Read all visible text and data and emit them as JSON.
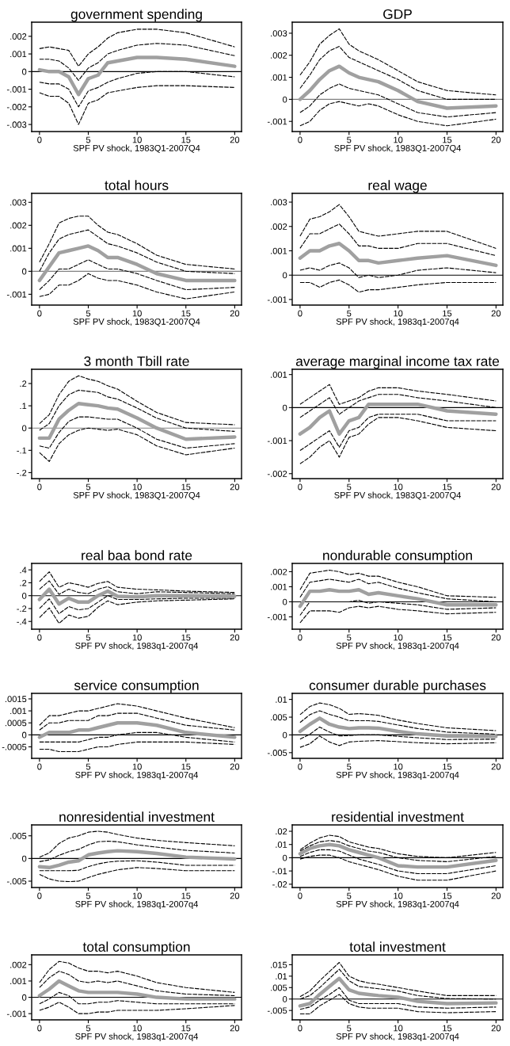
{
  "chart_data": [
    {
      "type": "line",
      "title": "government spending",
      "xlabel": "SPF PV shock, 1983Q1-2007Q4",
      "x": [
        0,
        1,
        2,
        3,
        4,
        5,
        6,
        7,
        8,
        10,
        12,
        15,
        20
      ],
      "xlim": [
        -0.8,
        20.7
      ],
      "xticks": [
        0,
        5,
        10,
        15,
        20
      ],
      "ylim": [
        -0.0034,
        0.0028
      ],
      "yticks": [
        {
          "value": -0.003,
          "label": "-.003"
        },
        {
          "value": -0.002,
          "label": "-.002"
        },
        {
          "value": -0.001,
          "label": "-.001"
        },
        0,
        {
          "value": 0.001,
          "label": ".001"
        },
        {
          "value": 0.002,
          "label": ".002"
        }
      ],
      "ref_lines": [
        {
          "axis": "y",
          "value": 0,
          "color": "#000000"
        }
      ],
      "series": [
        {
          "color": "#000000",
          "line_style": "dashed",
          "values": [
            0.0013,
            0.0014,
            0.0013,
            0.0012,
            0.0003,
            0.001,
            0.0014,
            0.0019,
            0.0022,
            0.0024,
            0.0024,
            0.0022,
            0.0014
          ]
        },
        {
          "color": "#000000",
          "line_style": "dashed",
          "values": [
            0.0007,
            0.0007,
            0.0006,
            0.0002,
            -0.0005,
            0.0002,
            0.0005,
            0.001,
            0.0012,
            0.0015,
            0.0016,
            0.0015,
            0.0009
          ]
        },
        {
          "color": "#000000",
          "line_style": "dashed",
          "values": [
            -0.0006,
            -0.0007,
            -0.0007,
            -0.001,
            -0.002,
            -0.0011,
            -0.0009,
            -0.0006,
            -0.0004,
            -0.0001,
            0,
            0,
            -0.0003
          ]
        },
        {
          "color": "#000000",
          "line_style": "dashed",
          "values": [
            -0.0012,
            -0.0014,
            -0.0014,
            -0.0018,
            -0.003,
            -0.0018,
            -0.0016,
            -0.0012,
            -0.0011,
            -0.0009,
            -0.0008,
            -0.0008,
            -0.0009
          ]
        },
        {
          "color": "#a0a0a0",
          "line_style": "solid",
          "values": [
            0.0001,
            0,
            0,
            -0.0003,
            -0.0013,
            -0.0004,
            -0.0002,
            0.0005,
            0.0006,
            0.0008,
            0.0008,
            0.0007,
            0.0003
          ]
        }
      ]
    },
    {
      "type": "line",
      "title": "GDP",
      "xlabel": "SPF PV shock, 1983Q1-2007Q4",
      "x": [
        0,
        1,
        2,
        3,
        4,
        5,
        6,
        7,
        8,
        10,
        12,
        15,
        20
      ],
      "xlim": [
        -0.8,
        20.7
      ],
      "xticks": [
        0,
        5,
        10,
        15,
        20
      ],
      "ylim": [
        -0.00146,
        0.0035
      ],
      "yticks": [
        {
          "value": -0.001,
          "label": "-.001"
        },
        0,
        {
          "value": 0.001,
          "label": ".001"
        },
        {
          "value": 0.002,
          "label": ".002"
        },
        {
          "value": 0.003,
          "label": ".003"
        }
      ],
      "ref_lines": [
        {
          "axis": "y",
          "value": 0,
          "color": "#808080"
        }
      ],
      "series": [
        {
          "color": "#000000",
          "line_style": "dashed",
          "values": [
            0.0011,
            0.0017,
            0.0025,
            0.0029,
            0.0032,
            0.0025,
            0.0022,
            0.002,
            0.0018,
            0.0013,
            0.0008,
            0.0004,
            0.0002
          ]
        },
        {
          "color": "#000000",
          "line_style": "dashed",
          "values": [
            0.0005,
            0.0011,
            0.0018,
            0.0022,
            0.0024,
            0.0019,
            0.0017,
            0.0015,
            0.0013,
            0.0009,
            0.0004,
            0,
            0
          ]
        },
        {
          "color": "#000000",
          "line_style": "dashed",
          "values": [
            -0.0006,
            -0.0003,
            0.0002,
            0.0005,
            0.0007,
            0.0005,
            0.0004,
            0.0003,
            0.0002,
            -0.0002,
            -0.0006,
            -0.0008,
            -0.0006
          ]
        },
        {
          "color": "#000000",
          "line_style": "dashed",
          "values": [
            -0.0012,
            -0.001,
            -0.0005,
            -0.0002,
            -0.0001,
            -0.0002,
            -0.0003,
            -0.0002,
            -0.0003,
            -0.0007,
            -0.001,
            -0.0012,
            -0.0009
          ]
        },
        {
          "color": "#a0a0a0",
          "line_style": "solid",
          "values": [
            0,
            0.0004,
            0.0009,
            0.0013,
            0.0015,
            0.0012,
            0.001,
            0.0009,
            0.0008,
            0.0004,
            -0.0001,
            -0.0004,
            -0.0003
          ]
        }
      ]
    },
    {
      "type": "line",
      "title": "total hours",
      "xlabel": "SPF PV shock, 1983Q1-2007Q4",
      "x": [
        0,
        1,
        2,
        3,
        4,
        5,
        6,
        7,
        8,
        10,
        12,
        15,
        20
      ],
      "xlim": [
        -0.8,
        20.7
      ],
      "xticks": [
        0,
        5,
        10,
        15,
        20
      ],
      "ylim": [
        -0.00147,
        0.00339
      ],
      "yticks": [
        {
          "value": -0.001,
          "label": "-.001"
        },
        0,
        {
          "value": 0.001,
          "label": ".001"
        },
        {
          "value": 0.002,
          "label": ".002"
        },
        {
          "value": 0.003,
          "label": ".003"
        }
      ],
      "ref_lines": [
        {
          "axis": "y",
          "value": 0,
          "color": "#808080"
        }
      ],
      "series": [
        {
          "color": "#000000",
          "line_style": "dashed",
          "values": [
            0.0004,
            0.0012,
            0.0021,
            0.0023,
            0.0024,
            0.0024,
            0.002,
            0.0017,
            0.0016,
            0.0012,
            0.0007,
            0.0003,
            0.0001
          ]
        },
        {
          "color": "#000000",
          "line_style": "dashed",
          "values": [
            0,
            0.0008,
            0.0014,
            0.0016,
            0.0017,
            0.0018,
            0.0015,
            0.0012,
            0.0011,
            0.0008,
            0.0004,
            0,
            -0.0001
          ]
        },
        {
          "color": "#000000",
          "line_style": "dashed",
          "values": [
            -0.0008,
            -0.0004,
            0.0001,
            0.0001,
            0.0003,
            0.0005,
            0.0003,
            0.0001,
            0.0001,
            -0.0001,
            -0.0004,
            -0.0008,
            -0.0007
          ]
        },
        {
          "color": "#000000",
          "line_style": "dashed",
          "values": [
            -0.0011,
            -0.001,
            -0.0006,
            -0.0006,
            -0.0004,
            -0.0001,
            -0.0003,
            -0.0004,
            -0.0004,
            -0.0006,
            -0.0009,
            -0.0012,
            -0.0009
          ]
        },
        {
          "color": "#a0a0a0",
          "line_style": "solid",
          "values": [
            -0.0004,
            0.0002,
            0.0008,
            0.0009,
            0.001,
            0.0011,
            0.0009,
            0.0006,
            0.0006,
            0.0003,
            -0.0001,
            -0.0004,
            -0.0004
          ]
        }
      ]
    },
    {
      "type": "line",
      "title": "real wage",
      "xlabel": "SPF PV shock, 1983q1-2007q4",
      "x": [
        0,
        1,
        2,
        3,
        4,
        5,
        6,
        7,
        8,
        10,
        12,
        15,
        20
      ],
      "xlim": [
        -0.8,
        20.7
      ],
      "xticks": [
        0,
        5,
        10,
        15,
        20
      ],
      "ylim": [
        -0.00123,
        0.00336
      ],
      "yticks": [
        {
          "value": -0.001,
          "label": "-.001"
        },
        0,
        {
          "value": 0.001,
          "label": ".001"
        },
        {
          "value": 0.002,
          "label": ".002"
        },
        {
          "value": 0.003,
          "label": ".003"
        }
      ],
      "ref_lines": [
        {
          "axis": "y",
          "value": 0,
          "color": "#000000"
        }
      ],
      "series": [
        {
          "color": "#000000",
          "line_style": "dashed",
          "values": [
            0.0016,
            0.0023,
            0.0024,
            0.0026,
            0.0029,
            0.0024,
            0.0018,
            0.0017,
            0.0016,
            0.0017,
            0.0018,
            0.0018,
            0.0011
          ]
        },
        {
          "color": "#000000",
          "line_style": "dashed",
          "values": [
            0.0011,
            0.0017,
            0.0017,
            0.0019,
            0.0021,
            0.0017,
            0.0012,
            0.0012,
            0.0011,
            0.0011,
            0.0013,
            0.0013,
            0.0008
          ]
        },
        {
          "color": "#000000",
          "line_style": "dashed",
          "values": [
            0.0002,
            0.0003,
            0.0002,
            0.0004,
            0.0005,
            0.0003,
            -0.0001,
            0,
            -0.0001,
            0,
            0.0002,
            0.0003,
            0.0001
          ]
        },
        {
          "color": "#000000",
          "line_style": "dashed",
          "values": [
            -0.0003,
            -0.0003,
            -0.0005,
            -0.0003,
            -0.0002,
            -0.0004,
            -0.0007,
            -0.0006,
            -0.0006,
            -0.0005,
            -0.0004,
            -0.0003,
            -0.0003
          ]
        },
        {
          "color": "#a0a0a0",
          "line_style": "solid",
          "values": [
            0.0007,
            0.001,
            0.001,
            0.0012,
            0.0013,
            0.001,
            0.0006,
            0.0006,
            0.0005,
            0.0006,
            0.0007,
            0.0008,
            0.0004
          ]
        }
      ]
    },
    {
      "type": "line",
      "title": "3 month Tbill rate",
      "xlabel": "SPF PV shock, 1983Q1-2007Q4",
      "x": [
        0,
        1,
        2,
        3,
        4,
        5,
        6,
        7,
        8,
        10,
        12,
        15,
        20
      ],
      "xlim": [
        -0.8,
        20.7
      ],
      "xticks": [
        0,
        5,
        10,
        15,
        20
      ],
      "ylim": [
        -0.227,
        0.264
      ],
      "yticks": [
        {
          "value": -0.2,
          "label": "-.2"
        },
        {
          "value": -0.1,
          "label": "-.1"
        },
        0,
        {
          "value": 0.1,
          "label": ".1"
        },
        {
          "value": 0.2,
          "label": ".2"
        }
      ],
      "ref_lines": [
        {
          "axis": "y",
          "value": 0,
          "color": "#808080"
        }
      ],
      "series": [
        {
          "color": "#000000",
          "line_style": "dashed",
          "values": [
            0.02,
            0.06,
            0.15,
            0.21,
            0.235,
            0.22,
            0.21,
            0.19,
            0.175,
            0.12,
            0.07,
            0.025,
            0.015
          ]
        },
        {
          "color": "#000000",
          "line_style": "dashed",
          "values": [
            -0.01,
            0.02,
            0.1,
            0.15,
            0.17,
            0.165,
            0.16,
            0.14,
            0.13,
            0.09,
            0.045,
            0,
            -0.015
          ]
        },
        {
          "color": "#000000",
          "line_style": "dashed",
          "values": [
            -0.08,
            -0.09,
            -0.02,
            0.03,
            0.05,
            0.05,
            0.045,
            0.04,
            0.04,
            0,
            -0.05,
            -0.09,
            -0.07
          ]
        },
        {
          "color": "#000000",
          "line_style": "dashed",
          "values": [
            -0.11,
            -0.15,
            -0.07,
            -0.03,
            -0.01,
            0,
            -0.005,
            -0.01,
            -0.005,
            -0.03,
            -0.08,
            -0.12,
            -0.09
          ]
        },
        {
          "color": "#a0a0a0",
          "line_style": "solid",
          "values": [
            -0.045,
            -0.045,
            0.04,
            0.08,
            0.11,
            0.105,
            0.1,
            0.09,
            0.085,
            0.045,
            0,
            -0.05,
            -0.04
          ]
        }
      ]
    },
    {
      "type": "line",
      "title": "average marginal income tax rate",
      "xlabel": "SPF PV shock, 1983Q1-2007Q4",
      "x": [
        0,
        1,
        2,
        3,
        4,
        5,
        6,
        7,
        8,
        10,
        12,
        15,
        20
      ],
      "xlim": [
        -0.8,
        20.7
      ],
      "xticks": [
        0,
        5,
        10,
        15,
        20
      ],
      "ylim": [
        -0.00215,
        0.00116
      ],
      "yticks": [
        {
          "value": -0.002,
          "label": "-.002"
        },
        {
          "value": -0.001,
          "label": "-.001"
        },
        0,
        {
          "value": 0.001,
          "label": ".001"
        }
      ],
      "ref_lines": [
        {
          "axis": "y",
          "value": 0,
          "color": "#000000"
        }
      ],
      "series": [
        {
          "color": "#000000",
          "line_style": "dashed",
          "values": [
            0.0001,
            0.0003,
            0.0005,
            0.0007,
            0.0001,
            0.0002,
            0.0003,
            0.0005,
            0.0006,
            0.0006,
            0.0005,
            0.0004,
            0.0002
          ]
        },
        {
          "color": "#000000",
          "line_style": "dashed",
          "values": [
            -0.0003,
            -0.0001,
            0.0001,
            0.0003,
            -0.0002,
            0,
            0.0002,
            0.0003,
            0.0004,
            0.0004,
            0.0003,
            0.0002,
            0
          ]
        },
        {
          "color": "#000000",
          "line_style": "dashed",
          "values": [
            -0.0013,
            -0.0011,
            -0.0009,
            -0.0007,
            -0.0012,
            -0.0007,
            -0.0006,
            -0.0003,
            -0.0002,
            -0.0002,
            -0.0002,
            -0.0004,
            -0.0004
          ]
        },
        {
          "color": "#000000",
          "line_style": "dashed",
          "values": [
            -0.0017,
            -0.0015,
            -0.0012,
            -0.001,
            -0.0015,
            -0.0009,
            -0.0008,
            -0.0005,
            -0.0003,
            -0.0003,
            -0.0004,
            -0.0006,
            -0.0007
          ]
        },
        {
          "color": "#a0a0a0",
          "line_style": "solid",
          "values": [
            -0.0008,
            -0.0006,
            -0.0003,
            -0.0001,
            -0.0008,
            -0.0004,
            -0.0003,
            0.0001,
            0.0001,
            0.0001,
            0.0001,
            -0.0001,
            -0.0002
          ]
        }
      ]
    },
    {
      "type": "line",
      "title": "real baa bond rate",
      "xlabel": "SPF PV shock, 1983q1-2007q4",
      "x": [
        0,
        1,
        2,
        3,
        4,
        5,
        6,
        7,
        8,
        10,
        12,
        15,
        20
      ],
      "xlim": [
        -0.8,
        20.7
      ],
      "xticks": [
        0,
        5,
        10,
        15,
        20
      ],
      "ylim": [
        -0.52,
        0.5
      ],
      "yticks": [
        {
          "value": -0.4,
          "label": "-.4"
        },
        {
          "value": -0.2,
          "label": "-.2"
        },
        0,
        {
          "value": 0.2,
          "label": ".2"
        },
        {
          "value": 0.4,
          "label": ".4"
        }
      ],
      "ref_lines": [
        {
          "axis": "y",
          "value": 0,
          "color": "#000000"
        }
      ],
      "series": [
        {
          "color": "#000000",
          "line_style": "dashed",
          "values": [
            0.22,
            0.37,
            0.13,
            0.2,
            0.17,
            0.13,
            0.19,
            0.22,
            0.13,
            0.1,
            0.09,
            0.07,
            0.05
          ]
        },
        {
          "color": "#000000",
          "line_style": "dashed",
          "values": [
            0.1,
            0.23,
            0.02,
            0.1,
            0.05,
            0.03,
            0.1,
            0.14,
            0.06,
            0.03,
            0.06,
            0.05,
            0.03
          ]
        },
        {
          "color": "#000000",
          "line_style": "dashed",
          "values": [
            -0.2,
            -0.05,
            -0.28,
            -0.17,
            -0.22,
            -0.2,
            -0.1,
            0,
            -0.06,
            -0.06,
            -0.05,
            -0.04,
            -0.04
          ]
        },
        {
          "color": "#000000",
          "line_style": "dashed",
          "values": [
            -0.34,
            -0.19,
            -0.43,
            -0.3,
            -0.35,
            -0.32,
            -0.18,
            -0.08,
            -0.14,
            -0.1,
            -0.08,
            -0.07,
            -0.05
          ]
        },
        {
          "color": "#a0a0a0",
          "line_style": "solid",
          "values": [
            -0.06,
            0.1,
            -0.13,
            -0.04,
            -0.1,
            -0.1,
            0,
            0.07,
            -0.01,
            -0.02,
            0,
            0,
            -0.01
          ]
        }
      ]
    },
    {
      "type": "line",
      "title": "nondurable consumption",
      "xlabel": "SPF PV shock, 1983q1-2007q4",
      "x": [
        0,
        1,
        2,
        3,
        4,
        5,
        6,
        7,
        8,
        10,
        12,
        15,
        20
      ],
      "xlim": [
        -0.8,
        20.7
      ],
      "xticks": [
        0,
        5,
        10,
        15,
        20
      ],
      "ylim": [
        -0.00182,
        0.00255
      ],
      "yticks": [
        {
          "value": -0.001,
          "label": "-.001"
        },
        0,
        {
          "value": 0.001,
          "label": ".001"
        },
        {
          "value": 0.002,
          "label": ".002"
        }
      ],
      "ref_lines": [
        {
          "axis": "y",
          "value": 0,
          "color": "#000000"
        }
      ],
      "series": [
        {
          "color": "#000000",
          "line_style": "dashed",
          "values": [
            0.0008,
            0.0019,
            0.002,
            0.0021,
            0.002,
            0.0018,
            0.0019,
            0.0017,
            0.0017,
            0.0013,
            0.001,
            0.0004,
            0.0003
          ]
        },
        {
          "color": "#000000",
          "line_style": "dashed",
          "values": [
            0.0003,
            0.0013,
            0.0014,
            0.0015,
            0.0014,
            0.0013,
            0.0015,
            0.0012,
            0.0013,
            0.0009,
            0.0006,
            0.0002,
            0
          ]
        },
        {
          "color": "#000000",
          "line_style": "dashed",
          "values": [
            -0.0009,
            0,
            0,
            0,
            0,
            0,
            0.0001,
            -0.0001,
            0,
            -0.0001,
            -0.0002,
            -0.0005,
            -0.0004
          ]
        },
        {
          "color": "#000000",
          "line_style": "dashed",
          "values": [
            -0.0014,
            -0.0006,
            -0.0006,
            -0.0006,
            -0.0007,
            -0.0004,
            -0.0003,
            -0.0004,
            -0.0003,
            -0.0005,
            -0.0006,
            -0.0008,
            -0.0007
          ]
        },
        {
          "color": "#a0a0a0",
          "line_style": "solid",
          "values": [
            -0.0003,
            0.0007,
            0.0007,
            0.0008,
            0.0007,
            0.0007,
            0.0008,
            0.0005,
            0.0006,
            0.0004,
            0.0002,
            -0.0002,
            -0.0002
          ]
        }
      ]
    },
    {
      "type": "line",
      "title": "service consumption",
      "xlabel": "SPF PV shock, 1983q1-2007q4",
      "x": [
        0,
        1,
        2,
        3,
        4,
        5,
        6,
        7,
        8,
        10,
        12,
        15,
        20
      ],
      "xlim": [
        -0.8,
        20.7
      ],
      "xticks": [
        0,
        5,
        10,
        15,
        20
      ],
      "ylim": [
        -0.00098,
        0.00173
      ],
      "yticks": [
        {
          "value": -0.0005,
          "label": "-.0005"
        },
        0,
        {
          "value": 0.0005,
          "label": ".0005"
        },
        {
          "value": 0.001,
          "label": ".001"
        },
        {
          "value": 0.0015,
          "label": ".0015"
        }
      ],
      "ref_lines": [
        {
          "axis": "y",
          "value": 0,
          "color": "#000000"
        }
      ],
      "series": [
        {
          "color": "#000000",
          "line_style": "dashed",
          "values": [
            0.0004,
            0.0008,
            0.0008,
            0.0009,
            0.001,
            0.001,
            0.0011,
            0.0012,
            0.0013,
            0.0012,
            0.001,
            0.0007,
            0.0003
          ]
        },
        {
          "color": "#000000",
          "line_style": "dashed",
          "values": [
            0.0002,
            0.0005,
            0.0005,
            0.0006,
            0.0006,
            0.0006,
            0.0008,
            0.0008,
            0.0009,
            0.0009,
            0.0007,
            0.0004,
            0.0002
          ]
        },
        {
          "color": "#000000",
          "line_style": "dashed",
          "values": [
            -0.0003,
            -0.0003,
            -0.0003,
            -0.0003,
            -0.0003,
            -0.0002,
            -0.0001,
            -0.0001,
            0,
            0.0001,
            0.0001,
            -0.0001,
            -0.0003
          ]
        },
        {
          "color": "#000000",
          "line_style": "dashed",
          "values": [
            -0.0006,
            -0.0006,
            -0.0007,
            -0.0007,
            -0.0007,
            -0.0006,
            -0.0005,
            -0.0005,
            -0.0004,
            -0.0003,
            -0.0003,
            -0.0003,
            -0.0004
          ]
        },
        {
          "color": "#a0a0a0",
          "line_style": "solid",
          "values": [
            -0.0001,
            0.0001,
            0.0001,
            0.0001,
            0.0002,
            0.0002,
            0.0003,
            0.0004,
            0.0005,
            0.0005,
            0.0004,
            0.0001,
            -0.0001
          ]
        }
      ]
    },
    {
      "type": "line",
      "title": "consumer durable purchases",
      "xlabel": "SPF PV shock, 1983q1-2007q4",
      "x": [
        0,
        1,
        2,
        3,
        4,
        5,
        6,
        7,
        8,
        10,
        12,
        15,
        20
      ],
      "xlim": [
        -0.8,
        20.7
      ],
      "xticks": [
        0,
        5,
        10,
        15,
        20
      ],
      "ylim": [
        -0.0066,
        0.0117
      ],
      "yticks": [
        {
          "value": -0.005,
          "label": "-.005"
        },
        0,
        {
          "value": 0.005,
          "label": ".005"
        },
        {
          "value": 0.01,
          "label": ".01"
        }
      ],
      "ref_lines": [
        {
          "axis": "y",
          "value": 0,
          "color": "#000000"
        }
      ],
      "series": [
        {
          "color": "#000000",
          "line_style": "dashed",
          "values": [
            0.0057,
            0.008,
            0.009,
            0.0085,
            0.0075,
            0.0058,
            0.006,
            0.0058,
            0.0055,
            0.0042,
            0.0032,
            0.002,
            0.0012
          ]
        },
        {
          "color": "#000000",
          "line_style": "dashed",
          "values": [
            0.0035,
            0.0057,
            0.0068,
            0.0058,
            0.005,
            0.004,
            0.004,
            0.004,
            0.0038,
            0.0028,
            0.0018,
            0.0008,
            0.0002
          ]
        },
        {
          "color": "#000000",
          "line_style": "dashed",
          "values": [
            -0.0012,
            0.0002,
            0.0022,
            0.0008,
            -0.0003,
            -0.0002,
            0,
            0,
            0,
            -0.0004,
            -0.0008,
            -0.0013,
            -0.0012
          ]
        },
        {
          "color": "#000000",
          "line_style": "dashed",
          "values": [
            -0.0035,
            -0.0025,
            -0.0003,
            -0.002,
            -0.003,
            -0.002,
            -0.0018,
            -0.0017,
            -0.0016,
            -0.0019,
            -0.0022,
            -0.0025,
            -0.0022
          ]
        },
        {
          "color": "#a0a0a0",
          "line_style": "solid",
          "values": [
            0.001,
            0.003,
            0.0047,
            0.003,
            0.0022,
            0.0018,
            0.002,
            0.002,
            0.0019,
            0.001,
            0.0003,
            -0.0003,
            -0.0004
          ]
        }
      ]
    },
    {
      "type": "line",
      "title": "nonresidential investment",
      "xlabel": "SPF PV shock, 1983q1-2007q4",
      "x": [
        0,
        1,
        2,
        3,
        4,
        5,
        6,
        7,
        8,
        10,
        12,
        15,
        20
      ],
      "xlim": [
        -0.8,
        20.7
      ],
      "xticks": [
        0,
        5,
        10,
        15,
        20
      ],
      "ylim": [
        -0.0064,
        0.0074
      ],
      "yticks": [
        {
          "value": -0.005,
          "label": "-.005"
        },
        0,
        {
          "value": 0.005,
          "label": ".005"
        }
      ],
      "ref_lines": [
        {
          "axis": "y",
          "value": 0,
          "color": "#000000"
        }
      ],
      "series": [
        {
          "color": "#000000",
          "line_style": "dashed",
          "values": [
            0.0003,
            0.0012,
            0.0033,
            0.0045,
            0.005,
            0.0058,
            0.006,
            0.0058,
            0.0053,
            0.0045,
            0.004,
            0.0035,
            0.0028
          ]
        },
        {
          "color": "#000000",
          "line_style": "dashed",
          "values": [
            -0.0007,
            -0.0003,
            0.0007,
            0.0015,
            0.002,
            0.003,
            0.0037,
            0.0038,
            0.0037,
            0.003,
            0.0025,
            0.0018,
            0.0012
          ]
        },
        {
          "color": "#000000",
          "line_style": "dashed",
          "values": [
            -0.0027,
            -0.0027,
            -0.0027,
            -0.0027,
            -0.0026,
            -0.0018,
            -0.0012,
            -0.0008,
            -0.0006,
            -0.0005,
            -0.0008,
            -0.0015,
            -0.0015
          ]
        },
        {
          "color": "#000000",
          "line_style": "dashed",
          "values": [
            -0.0035,
            -0.0045,
            -0.005,
            -0.0051,
            -0.005,
            -0.0042,
            -0.0035,
            -0.003,
            -0.0025,
            -0.002,
            -0.0022,
            -0.0027,
            -0.0027
          ]
        },
        {
          "color": "#a0a0a0",
          "line_style": "solid",
          "values": [
            -0.0018,
            -0.002,
            -0.0015,
            -0.0008,
            -0.0005,
            0.0008,
            0.0012,
            0.0015,
            0.0017,
            0.0015,
            0.0011,
            0.0003,
            -0.0001
          ]
        }
      ]
    },
    {
      "type": "line",
      "title": "residential investment",
      "xlabel": "SPF PV shock, 1983q1-2007q4",
      "x": [
        0,
        1,
        2,
        3,
        4,
        5,
        6,
        7,
        8,
        10,
        12,
        15,
        20
      ],
      "xlim": [
        -0.8,
        20.7
      ],
      "xticks": [
        0,
        5,
        10,
        15,
        20
      ],
      "ylim": [
        -0.0225,
        0.0248
      ],
      "yticks": [
        {
          "value": -0.02,
          "label": "-.02"
        },
        {
          "value": -0.01,
          "label": "-.01"
        },
        0,
        {
          "value": 0.01,
          "label": ".01"
        },
        {
          "value": 0.02,
          "label": ".02"
        }
      ],
      "ref_lines": [
        {
          "axis": "y",
          "value": 0,
          "color": "#000000"
        }
      ],
      "series": [
        {
          "color": "#000000",
          "line_style": "dashed",
          "values": [
            0.006,
            0.011,
            0.015,
            0.017,
            0.016,
            0.012,
            0.01,
            0.008,
            0.007,
            0.003,
            0.001,
            0,
            0.004
          ]
        },
        {
          "color": "#000000",
          "line_style": "dashed",
          "values": [
            0.005,
            0.009,
            0.012,
            0.013,
            0.012,
            0.009,
            0.007,
            0.005,
            0.004,
            0,
            -0.002,
            -0.003,
            0.001
          ]
        },
        {
          "color": "#000000",
          "line_style": "dashed",
          "values": [
            0.001,
            0.004,
            0.006,
            0.006,
            0.005,
            0.002,
            -0.001,
            -0.003,
            -0.005,
            -0.01,
            -0.012,
            -0.012,
            -0.006
          ]
        },
        {
          "color": "#000000",
          "line_style": "dashed",
          "values": [
            -0.001,
            0.001,
            0.002,
            0.002,
            0,
            -0.003,
            -0.005,
            -0.007,
            -0.009,
            -0.014,
            -0.017,
            -0.017,
            -0.01
          ]
        },
        {
          "color": "#a0a0a0",
          "line_style": "solid",
          "values": [
            0.003,
            0.007,
            0.009,
            0.01,
            0.009,
            0.006,
            0.004,
            0.002,
            0,
            -0.006,
            -0.007,
            -0.007,
            -0.002
          ]
        }
      ]
    },
    {
      "type": "line",
      "title": "total consumption",
      "xlabel": "SPF PV shock, 1983q1-2007q4",
      "x": [
        0,
        1,
        2,
        3,
        4,
        5,
        6,
        7,
        8,
        10,
        12,
        15,
        20
      ],
      "xlim": [
        -0.8,
        20.7
      ],
      "xticks": [
        0,
        5,
        10,
        15,
        20
      ],
      "ylim": [
        -0.00138,
        0.0026
      ],
      "yticks": [
        {
          "value": -0.001,
          "label": "-.001"
        },
        0,
        {
          "value": 0.001,
          "label": ".001"
        },
        {
          "value": 0.002,
          "label": ".002"
        }
      ],
      "ref_lines": [
        {
          "axis": "y",
          "value": 0,
          "color": "#000000"
        }
      ],
      "series": [
        {
          "color": "#000000",
          "line_style": "dashed",
          "values": [
            0.0009,
            0.0017,
            0.0022,
            0.0021,
            0.0018,
            0.0016,
            0.0016,
            0.0015,
            0.0016,
            0.0013,
            0.0009,
            0.0006,
            0.0003
          ]
        },
        {
          "color": "#000000",
          "line_style": "dashed",
          "values": [
            0.0006,
            0.0012,
            0.0016,
            0.0014,
            0.001,
            0.0009,
            0.001,
            0.0009,
            0.001,
            0.0007,
            0.0004,
            0.0002,
            0.0001
          ]
        },
        {
          "color": "#000000",
          "line_style": "dashed",
          "values": [
            -0.0004,
            -0.0001,
            0.0003,
            0.0001,
            -0.0004,
            -0.0004,
            -0.0003,
            -0.0003,
            -0.0002,
            -0.0003,
            -0.0004,
            -0.0004,
            -0.0004
          ]
        },
        {
          "color": "#000000",
          "line_style": "dashed",
          "values": [
            -0.0008,
            -0.0006,
            -0.0003,
            -0.0006,
            -0.001,
            -0.001,
            -0.0009,
            -0.0009,
            -0.0008,
            -0.0008,
            -0.0008,
            -0.0007,
            -0.0005
          ]
        },
        {
          "color": "#a0a0a0",
          "line_style": "solid",
          "values": [
            0.0001,
            0.0005,
            0.001,
            0.0007,
            0.0004,
            0.0003,
            0.0003,
            0.0003,
            0.0003,
            0.0002,
            0,
            -0.0001,
            -0.0001
          ]
        }
      ]
    },
    {
      "type": "line",
      "title": "total investment",
      "xlabel": "SPF PV shock, 1983q1-2007q4",
      "x": [
        0,
        1,
        2,
        3,
        4,
        5,
        6,
        7,
        8,
        10,
        12,
        15,
        20
      ],
      "xlim": [
        -0.8,
        20.7
      ],
      "xticks": [
        0,
        5,
        10,
        15,
        20
      ],
      "ylim": [
        -0.0091,
        0.0193
      ],
      "yticks": [
        {
          "value": -0.005,
          "label": "-.005"
        },
        0,
        {
          "value": 0.005,
          "label": ".005"
        },
        {
          "value": 0.01,
          "label": ".01"
        },
        {
          "value": 0.015,
          "label": ".015"
        }
      ],
      "ref_lines": [
        {
          "axis": "y",
          "value": 0,
          "color": "#000000"
        }
      ],
      "series": [
        {
          "color": "#000000",
          "line_style": "dashed",
          "values": [
            0.001,
            0.0035,
            0.008,
            0.012,
            0.016,
            0.01,
            0.008,
            0.007,
            0.0065,
            0.005,
            0.0035,
            0.0015,
            0.0015
          ]
        },
        {
          "color": "#000000",
          "line_style": "dashed",
          "values": [
            0,
            0.0015,
            0.005,
            0.009,
            0.013,
            0.008,
            0.0055,
            0.005,
            0.0045,
            0.0035,
            0.0015,
            0.0002,
            0
          ]
        },
        {
          "color": "#000000",
          "line_style": "dashed",
          "values": [
            -0.0045,
            -0.0035,
            -0.0005,
            0.002,
            0.005,
            -0.0005,
            -0.002,
            -0.002,
            -0.002,
            -0.002,
            -0.0035,
            -0.004,
            -0.0035
          ]
        },
        {
          "color": "#000000",
          "line_style": "dashed",
          "values": [
            -0.0065,
            -0.0065,
            -0.003,
            -0.0005,
            0.002,
            -0.002,
            -0.0035,
            -0.004,
            -0.004,
            -0.004,
            -0.0055,
            -0.006,
            -0.0055
          ]
        },
        {
          "color": "#a0a0a0",
          "line_style": "solid",
          "values": [
            -0.003,
            -0.002,
            0.002,
            0.0055,
            0.009,
            0.004,
            0.0025,
            0.002,
            0.0015,
            0.0008,
            -0.001,
            -0.002,
            -0.0017
          ]
        }
      ]
    }
  ]
}
